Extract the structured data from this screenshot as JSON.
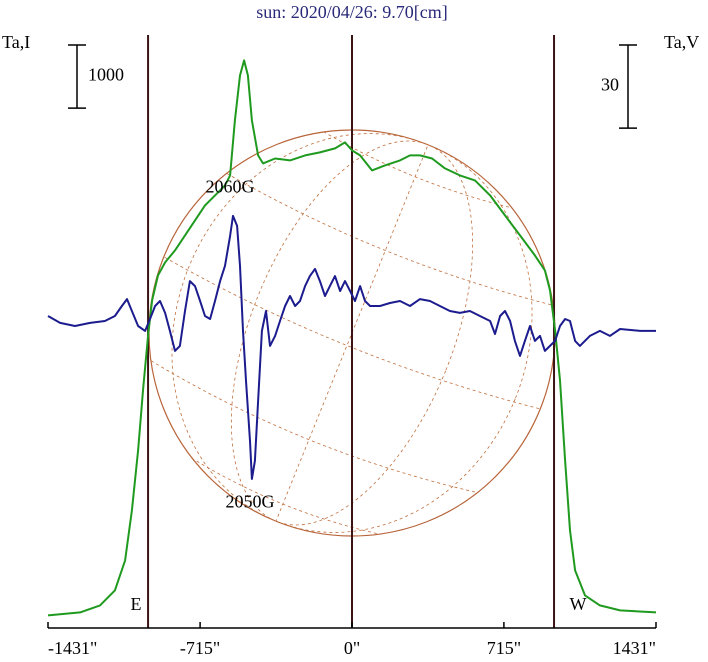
{
  "chart_data": {
    "type": "line",
    "title": "sun: 2020/04/26: 9.70[cm]",
    "ylabel": "Ta,I",
    "y2label": "Ta,V",
    "xlim": [
      -1431,
      1431
    ],
    "xticks": [
      {
        "value": -1431,
        "label": "-1431\""
      },
      {
        "value": -715,
        "label": "-715\""
      },
      {
        "value": 0,
        "label": "0\""
      },
      {
        "value": 715,
        "label": "715\""
      },
      {
        "value": 1431,
        "label": "1431\""
      }
    ],
    "ylim": [
      -200,
      9200
    ],
    "y2lim": [
      -109,
      105
    ],
    "yscale_bar": {
      "value": 1000,
      "label": "1000"
    },
    "y2scale_bar": {
      "value": 30,
      "label": "30"
    },
    "vlines": [
      {
        "value": -960,
        "label": "E"
      },
      {
        "value": 0
      },
      {
        "value": 951,
        "label": "W"
      }
    ],
    "annotations": [
      {
        "text": "2060G",
        "x": -574,
        "y": 6768
      },
      {
        "text": "2050G",
        "x": -480,
        "y": 1775
      }
    ],
    "series": [
      {
        "name": "Ta,I",
        "color": "#1f9a1f",
        "x": [
          -1431,
          -1280,
          -1186,
          -1116,
          -1068,
          -1036,
          -1007,
          -984,
          -960,
          -941,
          -913,
          -880,
          -833,
          -786,
          -739,
          -692,
          -645,
          -598,
          -574,
          -551,
          -527,
          -508,
          -490,
          -471,
          -442,
          -419,
          -362,
          -292,
          -221,
          -151,
          -80,
          -33,
          0,
          38,
          94,
          155,
          226,
          273,
          320,
          377,
          438,
          508,
          579,
          650,
          720,
          791,
          861,
          908,
          932,
          956,
          979,
          1003,
          1026,
          1050,
          1097,
          1167,
          1262,
          1431
        ],
        "values": [
          0,
          48,
          159,
          396,
          872,
          1664,
          2615,
          3566,
          4438,
          4993,
          5389,
          5595,
          5785,
          6023,
          6261,
          6499,
          6657,
          6816,
          6974,
          7846,
          8559,
          8797,
          8559,
          7846,
          7291,
          7164,
          7243,
          7212,
          7291,
          7339,
          7402,
          7497,
          7370,
          7291,
          7053,
          7133,
          7212,
          7291,
          7291,
          7243,
          7085,
          6974,
          6895,
          6657,
          6340,
          6023,
          5706,
          5468,
          5151,
          4517,
          3725,
          2457,
          1347,
          713,
          317,
          159,
          79,
          48
        ]
      },
      {
        "name": "Ta,V",
        "color": "#1c1c8e",
        "axis": "y2",
        "x": [
          -1431,
          -1374,
          -1304,
          -1233,
          -1163,
          -1116,
          -1083,
          -1059,
          -1036,
          -1007,
          -974,
          -951,
          -927,
          -904,
          -880,
          -857,
          -833,
          -810,
          -786,
          -763,
          -739,
          -715,
          -692,
          -668,
          -645,
          -621,
          -598,
          -574,
          -560,
          -541,
          -527,
          -513,
          -499,
          -480,
          -471,
          -457,
          -442,
          -424,
          -405,
          -386,
          -362,
          -339,
          -315,
          -292,
          -268,
          -245,
          -221,
          -198,
          -174,
          -151,
          -127,
          -104,
          -80,
          -56,
          -33,
          -9,
          14,
          38,
          61,
          85,
          132,
          179,
          226,
          273,
          320,
          367,
          414,
          461,
          508,
          555,
          602,
          650,
          673,
          697,
          720,
          744,
          767,
          791,
          814,
          838,
          861,
          885,
          908,
          932,
          956,
          979,
          1003,
          1026,
          1050,
          1073,
          1120,
          1167,
          1214,
          1262,
          1356,
          1431
        ],
        "values": [
          3.6,
          1.1,
          0,
          1.1,
          1.8,
          3.6,
          7.2,
          9.7,
          5.4,
          0,
          -1.8,
          2.5,
          7.2,
          9.0,
          4.7,
          -1.8,
          -9.0,
          -7.2,
          5.4,
          16.2,
          14.4,
          9.0,
          3.6,
          2.5,
          9.0,
          16.2,
          21.7,
          32.5,
          39.7,
          36.1,
          21.7,
          -1.8,
          -19.8,
          -41.5,
          -55.2,
          -48.7,
          -27.1,
          -1.8,
          5.4,
          -7.2,
          -3.6,
          1.8,
          7.2,
          10.8,
          7.2,
          9.0,
          14.4,
          18.0,
          20.6,
          16.2,
          10.8,
          14.4,
          18.0,
          12.6,
          16.2,
          12.6,
          9.0,
          14.4,
          9.0,
          7.2,
          7.2,
          8.3,
          9.0,
          7.2,
          9.7,
          9.0,
          7.2,
          5.4,
          4.7,
          5.4,
          3.6,
          1.8,
          -2.9,
          3.6,
          5.4,
          1.8,
          -5.4,
          -10.8,
          -5.4,
          0,
          -5.4,
          -3.6,
          -9.0,
          -7.2,
          -5.4,
          0,
          2.5,
          1.8,
          -5.4,
          -7.2,
          -3.6,
          -1.8,
          -3.6,
          -1.1,
          -1.8,
          -1.8
        ]
      }
    ]
  }
}
